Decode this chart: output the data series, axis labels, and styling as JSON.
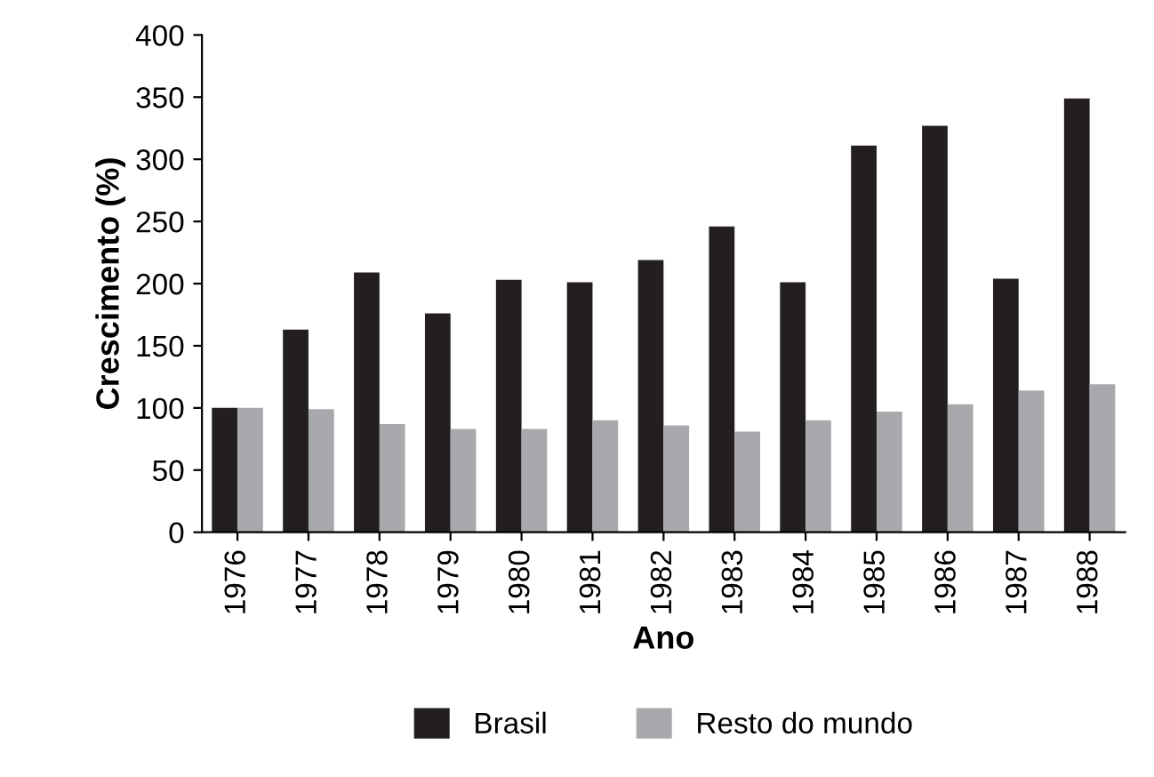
{
  "chart_data": {
    "type": "bar",
    "xlabel": "Ano",
    "ylabel": "Crescimento (%)",
    "categories": [
      "1976",
      "1977",
      "1978",
      "1979",
      "1980",
      "1981",
      "1982",
      "1983",
      "1984",
      "1985",
      "1986",
      "1987",
      "1988"
    ],
    "series": [
      {
        "name": "Brasil",
        "color": "#231f20",
        "values": [
          100,
          163,
          209,
          176,
          203,
          201,
          219,
          246,
          201,
          311,
          327,
          204,
          349
        ]
      },
      {
        "name": "Resto do mundo",
        "color": "#a7a9ac",
        "values": [
          100,
          99,
          87,
          83,
          83,
          90,
          86,
          81,
          90,
          97,
          103,
          114,
          119
        ]
      }
    ],
    "ylim": [
      0,
      400
    ],
    "yticks": [
      0,
      50,
      100,
      150,
      200,
      250,
      300,
      350,
      400
    ],
    "grid": false,
    "legend": "bottom"
  }
}
